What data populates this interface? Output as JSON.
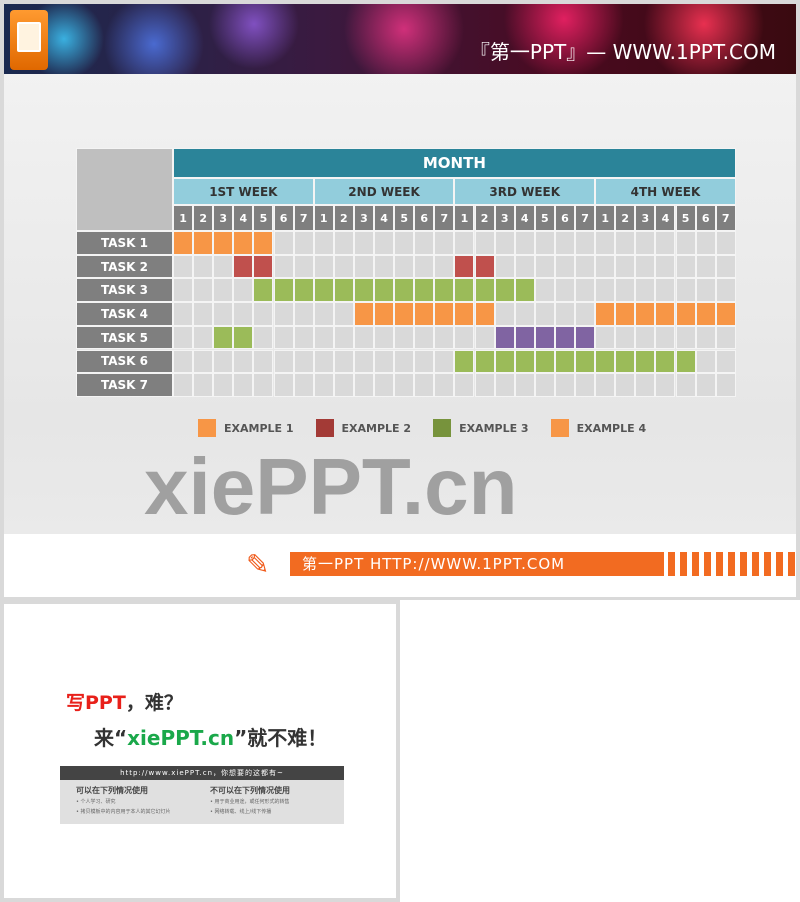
{
  "banner": {
    "text": "『第一PPT』— WWW.1PPT.COM",
    "logo_icon": "powerpoint-icon"
  },
  "gantt": {
    "month_label": "MONTH",
    "weeks": [
      "1ST WEEK",
      "2ND WEEK",
      "3RD WEEK",
      "4TH WEEK"
    ],
    "days": [
      "1",
      "2",
      "3",
      "4",
      "5",
      "6",
      "7"
    ],
    "tasks": [
      "TASK 1",
      "TASK 2",
      "TASK 3",
      "TASK 4",
      "TASK 5",
      "TASK 6",
      "TASK 7"
    ],
    "colors": {
      "month": "#2b8499",
      "week": "#92cddc",
      "day": "#7f7f7f",
      "task": "#7f7f7f",
      "empty": "#d9d9d9",
      "orange": "#f79646",
      "red": "#c0504d",
      "green": "#9bbb59",
      "purple": "#8064a2"
    },
    "bars": [
      {
        "task": 0,
        "start_day": 1,
        "end_day": 5,
        "color": "orange"
      },
      {
        "task": 1,
        "start_day": 4,
        "end_day": 5,
        "color": "red"
      },
      {
        "task": 1,
        "start_day": 15,
        "end_day": 16,
        "color": "red"
      },
      {
        "task": 2,
        "start_day": 5,
        "end_day": 18,
        "color": "green"
      },
      {
        "task": 3,
        "start_day": 10,
        "end_day": 16,
        "color": "orange"
      },
      {
        "task": 3,
        "start_day": 22,
        "end_day": 28,
        "color": "orange"
      },
      {
        "task": 4,
        "start_day": 3,
        "end_day": 4,
        "color": "green"
      },
      {
        "task": 4,
        "start_day": 17,
        "end_day": 21,
        "color": "purple"
      },
      {
        "task": 5,
        "start_day": 15,
        "end_day": 26,
        "color": "green"
      }
    ]
  },
  "legend": [
    {
      "label": "EXAMPLE 1",
      "color": "#f79646"
    },
    {
      "label": "EXAMPLE 2",
      "color": "#a33a36"
    },
    {
      "label": "EXAMPLE 3",
      "color": "#77933c"
    },
    {
      "label": "EXAMPLE 4",
      "color": "#f79646"
    }
  ],
  "watermark": "xiePPT.cn",
  "footer": {
    "text": "第一PPT HTTP://WWW.1PPT.COM",
    "icon": "pencil-icon"
  },
  "slide2": {
    "line1_red": "写PPT",
    "line1_rest": "，难？",
    "line2_a": "来“",
    "line2_green": "xiePPT.cn",
    "line2_b": "”就不难！",
    "bar": "http://www.xiePPT.cn，你想要的这都有~",
    "can_title": "可以在下列情况使用",
    "can_items": [
      "• 个人学习、研究",
      "• 拷贝模板中的内容用于本人的其它幻灯片"
    ],
    "cannot_title": "不可以在下列情况使用",
    "cannot_items": [
      "• 用于商业用途，或任何形式的转售",
      "• 网络转载、线上/线下传播"
    ]
  }
}
